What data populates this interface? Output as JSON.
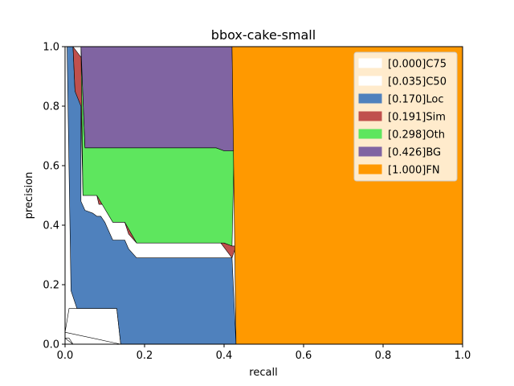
{
  "chart_data": {
    "type": "area",
    "title": "bbox-cake-small",
    "xlabel": "recall",
    "ylabel": "precision",
    "xlim": [
      0,
      1
    ],
    "ylim": [
      0,
      1
    ],
    "x_ticks": [
      "0.0",
      "0.2",
      "0.4",
      "0.6",
      "0.8",
      "1.0"
    ],
    "y_ticks": [
      "0.0",
      "0.2",
      "0.4",
      "0.6",
      "0.8",
      "1.0"
    ],
    "legend_position": "top-right",
    "series": [
      {
        "name": "[0.000]C75",
        "color": "#ffffff",
        "points": [
          [
            0.0,
            0.02
          ],
          [
            0.01,
            0.02
          ],
          [
            0.02,
            0.0
          ]
        ]
      },
      {
        "name": "[0.035]C50",
        "color": "#ffffff",
        "points": [
          [
            0.0,
            0.04
          ],
          [
            0.01,
            0.12
          ],
          [
            0.05,
            0.12
          ],
          [
            0.13,
            0.12
          ],
          [
            0.14,
            0.0
          ]
        ]
      },
      {
        "name": "[0.170]Loc",
        "color": "#4f81bd",
        "points": [
          [
            0.005,
            1.0
          ],
          [
            0.015,
            0.18
          ],
          [
            0.03,
            0.12
          ],
          [
            0.13,
            0.12
          ],
          [
            0.14,
            0.0
          ],
          [
            0.2,
            0.0
          ],
          [
            0.3,
            0.0
          ],
          [
            0.4,
            0.0
          ],
          [
            0.43,
            0.0
          ],
          [
            0.42,
            0.29
          ],
          [
            0.4,
            0.29
          ],
          [
            0.2,
            0.29
          ],
          [
            0.18,
            0.29
          ],
          [
            0.16,
            0.32
          ],
          [
            0.15,
            0.35
          ],
          [
            0.12,
            0.35
          ],
          [
            0.11,
            0.38
          ],
          [
            0.1,
            0.41
          ],
          [
            0.09,
            0.43
          ],
          [
            0.08,
            0.43
          ],
          [
            0.07,
            0.44
          ],
          [
            0.05,
            0.45
          ],
          [
            0.04,
            0.48
          ],
          [
            0.04,
            0.8
          ],
          [
            0.035,
            0.85
          ],
          [
            0.025,
            0.85
          ],
          [
            0.02,
            1.0
          ]
        ]
      },
      {
        "name": "[0.191]Sim",
        "color": "#c0504d",
        "points": [
          [
            0.02,
            1.0
          ],
          [
            0.025,
            0.85
          ],
          [
            0.04,
            0.8
          ],
          [
            0.045,
            0.5
          ],
          [
            0.08,
            0.5
          ],
          [
            0.085,
            0.47
          ],
          [
            0.11,
            0.47
          ],
          [
            0.12,
            0.41
          ],
          [
            0.15,
            0.41
          ],
          [
            0.16,
            0.37
          ],
          [
            0.18,
            0.34
          ],
          [
            0.4,
            0.34
          ],
          [
            0.42,
            0.33
          ],
          [
            0.43,
            0.33
          ],
          [
            0.42,
            0.29
          ]
        ]
      },
      {
        "name": "[0.298]Oth",
        "color": "#5ee65e",
        "points": [
          [
            0.04,
            1.0
          ],
          [
            0.045,
            0.5
          ],
          [
            0.08,
            0.5
          ],
          [
            0.12,
            0.41
          ],
          [
            0.15,
            0.41
          ],
          [
            0.18,
            0.34
          ],
          [
            0.4,
            0.34
          ],
          [
            0.42,
            0.33
          ],
          [
            0.425,
            0.65
          ],
          [
            0.4,
            0.65
          ],
          [
            0.38,
            0.66
          ],
          [
            0.05,
            0.66
          ]
        ]
      },
      {
        "name": "[0.426]BG",
        "color": "#8064a2",
        "points": [
          [
            0.04,
            1.0
          ],
          [
            0.05,
            0.66
          ],
          [
            0.38,
            0.66
          ],
          [
            0.4,
            0.65
          ],
          [
            0.425,
            0.65
          ],
          [
            0.42,
            1.0
          ]
        ]
      },
      {
        "name": "[1.000]FN",
        "color": "#ff9900",
        "points": [
          [
            0.42,
            1.0
          ],
          [
            0.43,
            0.0
          ],
          [
            1.0,
            0.0
          ],
          [
            1.0,
            1.0
          ]
        ]
      }
    ]
  }
}
